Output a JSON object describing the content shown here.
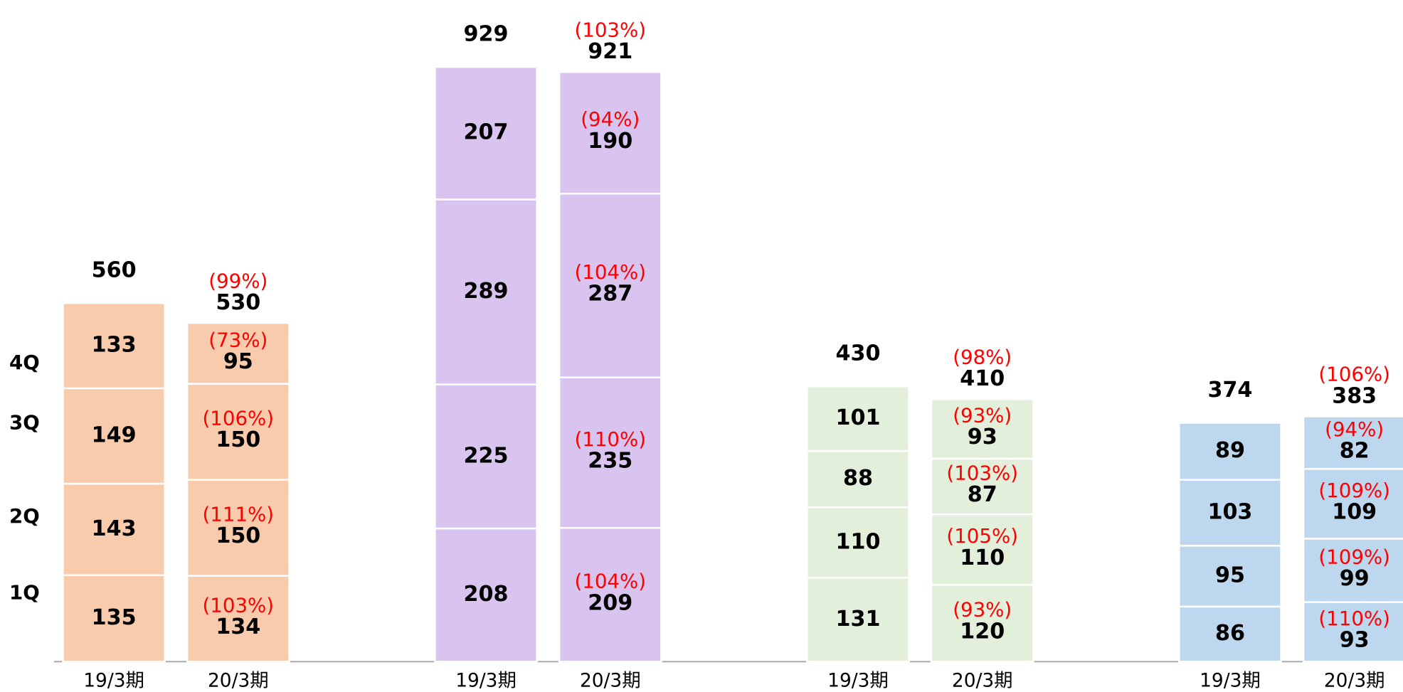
{
  "chart_data": {
    "type": "stacked_bar",
    "series_names": [
      "1Q",
      "2Q",
      "3Q",
      "4Q"
    ],
    "ylim": [
      0,
      1000
    ],
    "groups": [
      {
        "color": "#f8cbad",
        "bars": [
          {
            "category": "19/3期",
            "values": [
              135,
              143,
              149,
              133
            ],
            "total": 560
          },
          {
            "category": "20/3期",
            "values": [
              134,
              150,
              150,
              95
            ],
            "ratio_labels": [
              "(103%)",
              "(111%)",
              "(106%)",
              "(73%)"
            ],
            "total": 530,
            "total_ratio_label": "(99%)"
          }
        ]
      },
      {
        "color": "#d9c3ef",
        "bars": [
          {
            "category": "19/3期",
            "values": [
              208,
              225,
              289,
              207
            ],
            "total": 929
          },
          {
            "category": "20/3期",
            "values": [
              209,
              235,
              287,
              190
            ],
            "ratio_labels": [
              "(104%)",
              "(110%)",
              "(104%)",
              "(94%)"
            ],
            "total": 921,
            "total_ratio_label": "(103%)"
          }
        ]
      },
      {
        "color": "#e2efda",
        "bars": [
          {
            "category": "19/3期",
            "values": [
              131,
              110,
              88,
              101
            ],
            "total": 430
          },
          {
            "category": "20/3期",
            "values": [
              120,
              110,
              87,
              93
            ],
            "ratio_labels": [
              "(93%)",
              "(105%)",
              "(103%)",
              "(93%)"
            ],
            "total": 410,
            "total_ratio_label": "(98%)"
          }
        ]
      },
      {
        "color": "#bdd7ee",
        "bars": [
          {
            "category": "19/3期",
            "values": [
              86,
              95,
              103,
              89
            ],
            "total": 374
          },
          {
            "category": "20/3期",
            "values": [
              93,
              99,
              109,
              82
            ],
            "ratio_labels": [
              "(110%)",
              "(109%)",
              "(109%)",
              "(94%)"
            ],
            "total": 383,
            "total_ratio_label": "(106%)"
          }
        ]
      }
    ]
  }
}
